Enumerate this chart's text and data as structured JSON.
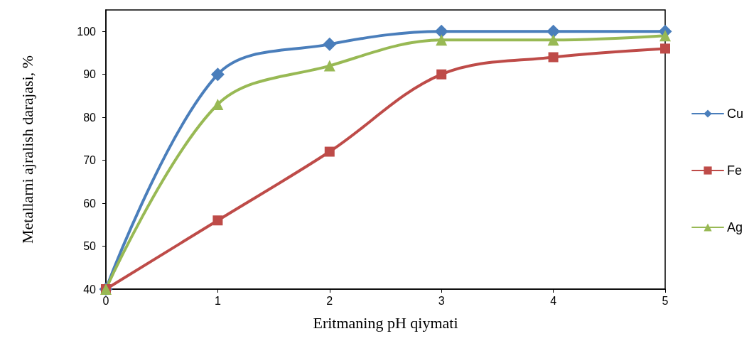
{
  "chart_data": {
    "type": "line",
    "xlabel": "Eritmaning pH qiymati",
    "ylabel": "Metallarni ajralish darajasi, %",
    "x": [
      0,
      1,
      2,
      3,
      4,
      5
    ],
    "xlim": [
      0,
      5
    ],
    "xticks": [
      0,
      1,
      2,
      3,
      4,
      5
    ],
    "ylim": [
      40,
      105
    ],
    "yticks": [
      40,
      50,
      60,
      70,
      80,
      90,
      100
    ],
    "grid": false,
    "legend": "right",
    "series": [
      {
        "name": "Cu",
        "color": "#4a7ebb",
        "marker": "diamond",
        "values": [
          40,
          90,
          97,
          100,
          100,
          100
        ]
      },
      {
        "name": "Fe",
        "color": "#be4b48",
        "marker": "square",
        "values": [
          40,
          56,
          72,
          90,
          94,
          96
        ]
      },
      {
        "name": "Ag",
        "color": "#98b954",
        "marker": "triangle",
        "values": [
          40,
          83,
          92,
          98,
          98,
          99
        ]
      }
    ]
  }
}
